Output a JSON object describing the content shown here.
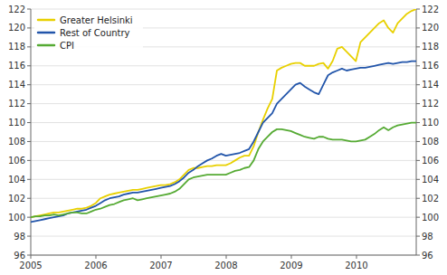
{
  "chart_data": {
    "type": "line",
    "x": [
      2005,
      2005.071289,
      2005.142578,
      2005.213867,
      2005.285157,
      2005.356446,
      2005.427735,
      2005.499024,
      2005.570313,
      2005.641602,
      2005.712892,
      2005.784181,
      2005.85547,
      2005.926759,
      2005.998048,
      2006.069337,
      2006.140627,
      2006.211916,
      2006.283205,
      2006.354494,
      2006.425783,
      2006.497072,
      2006.568361,
      2006.639651,
      2006.71094,
      2006.782229,
      2006.853518,
      2006.924807,
      2006.996096,
      2007.067386,
      2007.138675,
      2007.209964,
      2007.281253,
      2007.352542,
      2007.423831,
      2007.49512,
      2007.56641,
      2007.637699,
      2007.708988,
      2007.780277,
      2007.851566,
      2007.922855,
      2007.994145,
      2008.065434,
      2008.136723,
      2008.208012,
      2008.279301,
      2008.35059,
      2008.42188,
      2008.493169,
      2008.564458,
      2008.635747,
      2008.707036,
      2008.778325,
      2008.849614,
      2008.920904,
      2008.992193,
      2009.063482,
      2009.134771,
      2009.20606,
      2009.277349,
      2009.348639,
      2009.419928,
      2009.491217,
      2009.562506,
      2009.633795,
      2009.705084,
      2009.776373,
      2009.847663,
      2009.918952,
      2009.990241,
      2010.06153,
      2010.132819,
      2010.204108,
      2010.275398,
      2010.346687,
      2010.417976,
      2010.489265,
      2010.560554,
      2010.631843,
      2010.703133,
      2010.774422,
      2010.845711,
      2010.917
    ],
    "series": [
      {
        "name": "Greater Helsinki",
        "color": "#e8d000",
        "values": [
          100.0,
          100.1,
          100.2,
          100.3,
          100.4,
          100.5,
          100.5,
          100.6,
          100.7,
          100.8,
          100.9,
          100.9,
          101.0,
          101.2,
          101.5,
          102.0,
          102.2,
          102.4,
          102.5,
          102.6,
          102.7,
          102.8,
          102.9,
          102.9,
          103.0,
          103.1,
          103.2,
          103.3,
          103.4,
          103.4,
          103.5,
          103.7,
          104.0,
          104.5,
          105.0,
          105.2,
          105.2,
          105.3,
          105.4,
          105.4,
          105.5,
          105.5,
          105.5,
          105.7,
          106.0,
          106.3,
          106.5,
          106.5,
          107.5,
          109.0,
          110.3,
          111.5,
          112.5,
          115.5,
          115.8,
          116.0,
          116.2,
          116.3,
          116.3,
          116.0,
          116.0,
          116.0,
          116.2,
          116.3,
          115.7,
          116.5,
          117.8,
          118.0,
          117.5,
          117.0,
          116.5,
          118.5,
          119.0,
          119.5,
          120.0,
          120.5,
          120.8,
          120.0,
          119.5,
          120.5,
          121.0,
          121.5,
          121.8,
          122.0
        ]
      },
      {
        "name": "Rest of Country",
        "color": "#2255aa",
        "values": [
          99.5,
          99.6,
          99.7,
          99.8,
          99.9,
          100.0,
          100.1,
          100.2,
          100.4,
          100.5,
          100.6,
          100.7,
          100.8,
          101.0,
          101.2,
          101.5,
          101.8,
          102.0,
          102.1,
          102.2,
          102.4,
          102.5,
          102.6,
          102.6,
          102.7,
          102.8,
          102.9,
          103.0,
          103.1,
          103.2,
          103.3,
          103.5,
          103.8,
          104.2,
          104.7,
          105.0,
          105.4,
          105.7,
          106.0,
          106.2,
          106.5,
          106.7,
          106.5,
          106.6,
          106.7,
          106.8,
          107.0,
          107.2,
          108.0,
          109.0,
          110.0,
          110.5,
          111.0,
          112.0,
          112.5,
          113.0,
          113.5,
          114.0,
          114.2,
          113.8,
          113.5,
          113.2,
          113.0,
          114.0,
          115.0,
          115.3,
          115.5,
          115.7,
          115.5,
          115.6,
          115.7,
          115.8,
          115.8,
          115.9,
          116.0,
          116.1,
          116.2,
          116.3,
          116.2,
          116.3,
          116.4,
          116.4,
          116.5,
          116.5
        ]
      },
      {
        "name": "CPI",
        "color": "#55aa33",
        "values": [
          100.0,
          100.1,
          100.1,
          100.2,
          100.2,
          100.3,
          100.2,
          100.3,
          100.4,
          100.5,
          100.5,
          100.4,
          100.4,
          100.6,
          100.8,
          100.9,
          101.1,
          101.3,
          101.4,
          101.6,
          101.8,
          101.9,
          102.0,
          101.8,
          101.9,
          102.0,
          102.1,
          102.2,
          102.3,
          102.4,
          102.5,
          102.7,
          103.0,
          103.5,
          104.0,
          104.2,
          104.3,
          104.4,
          104.5,
          104.5,
          104.5,
          104.5,
          104.5,
          104.7,
          104.9,
          105.0,
          105.2,
          105.3,
          106.0,
          107.2,
          108.0,
          108.5,
          109.0,
          109.3,
          109.3,
          109.2,
          109.1,
          108.9,
          108.7,
          108.5,
          108.4,
          108.3,
          108.5,
          108.5,
          108.3,
          108.2,
          108.2,
          108.2,
          108.1,
          108.0,
          108.0,
          108.1,
          108.2,
          108.5,
          108.8,
          109.2,
          109.5,
          109.2,
          109.5,
          109.7,
          109.8,
          109.9,
          110.0,
          110.0
        ]
      }
    ],
    "xlim": [
      2005.0,
      2010.917
    ],
    "xticks": [
      2005,
      2006,
      2007,
      2008,
      2009,
      2010
    ],
    "ylim": [
      96,
      122
    ],
    "yticks": [
      96,
      98,
      100,
      102,
      104,
      106,
      108,
      110,
      112,
      114,
      116,
      118,
      120,
      122
    ],
    "y2lim": [
      96,
      122
    ],
    "y2ticks": [
      96,
      98,
      100,
      102,
      104,
      106,
      108,
      110,
      112,
      114,
      116,
      118,
      120,
      122
    ],
    "grid": true,
    "legend": "upper left"
  }
}
